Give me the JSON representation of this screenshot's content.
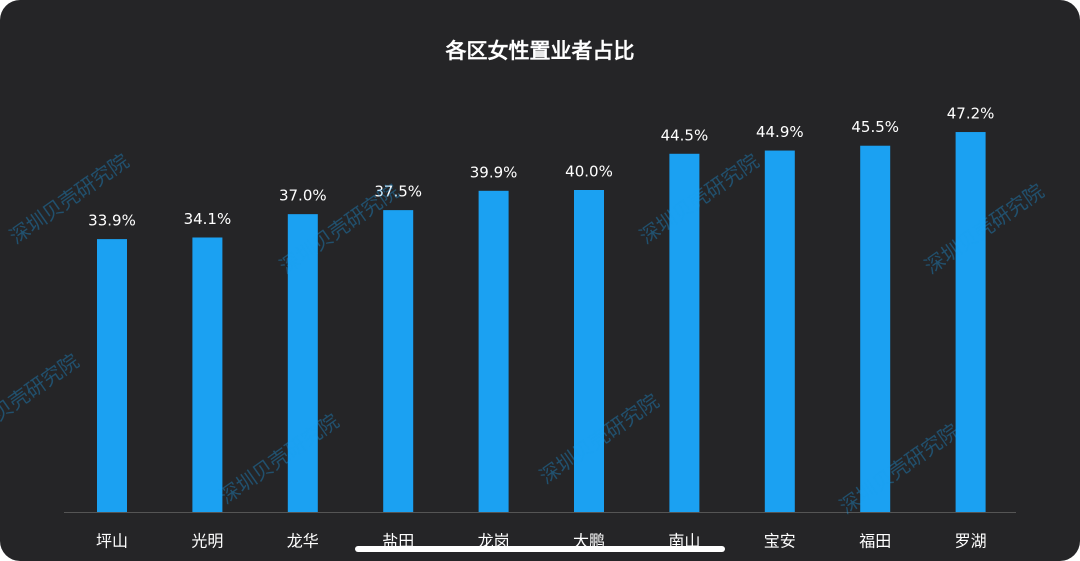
{
  "chart_data": {
    "type": "bar",
    "title": "各区女性置业者占比",
    "categories": [
      "坪山",
      "光明",
      "龙华",
      "盐田",
      "龙岗",
      "大鹏",
      "南山",
      "宝安",
      "福田",
      "罗湖"
    ],
    "values": [
      33.9,
      34.1,
      37.0,
      37.5,
      39.9,
      40.0,
      44.5,
      44.9,
      45.5,
      47.2
    ],
    "value_labels": [
      "33.9%",
      "34.1%",
      "37.0%",
      "37.5%",
      "39.9%",
      "40.0%",
      "44.5%",
      "44.9%",
      "45.5%",
      "47.2%"
    ],
    "color": "#1ba1f2"
  },
  "watermark": "深圳贝壳研究院"
}
